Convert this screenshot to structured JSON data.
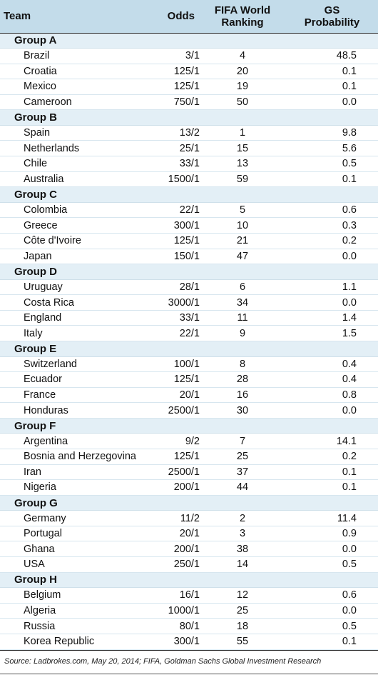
{
  "headers": {
    "team": "Team",
    "odds": "Odds",
    "ranking_line1": "FIFA World",
    "ranking_line2": "Ranking",
    "prob_line1": "GS",
    "prob_line2": "Probability"
  },
  "groups": [
    {
      "name": "Group A",
      "teams": [
        {
          "team": "Brazil",
          "odds": "3/1",
          "rank": "4",
          "prob": "48.5"
        },
        {
          "team": "Croatia",
          "odds": "125/1",
          "rank": "20",
          "prob": "0.1"
        },
        {
          "team": "Mexico",
          "odds": "125/1",
          "rank": "19",
          "prob": "0.1"
        },
        {
          "team": "Cameroon",
          "odds": "750/1",
          "rank": "50",
          "prob": "0.0"
        }
      ]
    },
    {
      "name": "Group B",
      "teams": [
        {
          "team": "Spain",
          "odds": "13/2",
          "rank": "1",
          "prob": "9.8"
        },
        {
          "team": "Netherlands",
          "odds": "25/1",
          "rank": "15",
          "prob": "5.6"
        },
        {
          "team": "Chile",
          "odds": "33/1",
          "rank": "13",
          "prob": "0.5"
        },
        {
          "team": "Australia",
          "odds": "1500/1",
          "rank": "59",
          "prob": "0.1"
        }
      ]
    },
    {
      "name": "Group C",
      "teams": [
        {
          "team": "Colombia",
          "odds": "22/1",
          "rank": "5",
          "prob": "0.6"
        },
        {
          "team": "Greece",
          "odds": "300/1",
          "rank": "10",
          "prob": "0.3"
        },
        {
          "team": "Côte d'Ivoire",
          "odds": "125/1",
          "rank": "21",
          "prob": "0.2"
        },
        {
          "team": "Japan",
          "odds": "150/1",
          "rank": "47",
          "prob": "0.0"
        }
      ]
    },
    {
      "name": "Group D",
      "teams": [
        {
          "team": "Uruguay",
          "odds": "28/1",
          "rank": "6",
          "prob": "1.1"
        },
        {
          "team": "Costa Rica",
          "odds": "3000/1",
          "rank": "34",
          "prob": "0.0"
        },
        {
          "team": "England",
          "odds": "33/1",
          "rank": "11",
          "prob": "1.4"
        },
        {
          "team": "Italy",
          "odds": "22/1",
          "rank": "9",
          "prob": "1.5"
        }
      ]
    },
    {
      "name": "Group E",
      "teams": [
        {
          "team": "Switzerland",
          "odds": "100/1",
          "rank": "8",
          "prob": "0.4"
        },
        {
          "team": "Ecuador",
          "odds": "125/1",
          "rank": "28",
          "prob": "0.4"
        },
        {
          "team": "France",
          "odds": "20/1",
          "rank": "16",
          "prob": "0.8"
        },
        {
          "team": "Honduras",
          "odds": "2500/1",
          "rank": "30",
          "prob": "0.0"
        }
      ]
    },
    {
      "name": "Group F",
      "teams": [
        {
          "team": "Argentina",
          "odds": "9/2",
          "rank": "7",
          "prob": "14.1"
        },
        {
          "team": "Bosnia and Herzegovina",
          "odds": "125/1",
          "rank": "25",
          "prob": "0.2"
        },
        {
          "team": "Iran",
          "odds": "2500/1",
          "rank": "37",
          "prob": "0.1"
        },
        {
          "team": "Nigeria",
          "odds": "200/1",
          "rank": "44",
          "prob": "0.1"
        }
      ]
    },
    {
      "name": "Group G",
      "teams": [
        {
          "team": "Germany",
          "odds": "11/2",
          "rank": "2",
          "prob": "11.4"
        },
        {
          "team": "Portugal",
          "odds": "20/1",
          "rank": "3",
          "prob": "0.9"
        },
        {
          "team": "Ghana",
          "odds": "200/1",
          "rank": "38",
          "prob": "0.0"
        },
        {
          "team": "USA",
          "odds": "250/1",
          "rank": "14",
          "prob": "0.5"
        }
      ]
    },
    {
      "name": "Group H",
      "teams": [
        {
          "team": "Belgium",
          "odds": "16/1",
          "rank": "12",
          "prob": "0.6"
        },
        {
          "team": "Algeria",
          "odds": "1000/1",
          "rank": "25",
          "prob": "0.0"
        },
        {
          "team": "Russia",
          "odds": "80/1",
          "rank": "18",
          "prob": "0.5"
        },
        {
          "team": "Korea Republic",
          "odds": "300/1",
          "rank": "55",
          "prob": "0.1"
        }
      ]
    }
  ],
  "source": "Source: Ladbrokes.com, May 20, 2014; FIFA, Goldman Sachs Global Investment Research",
  "colors": {
    "header_bg": "#c3dcea",
    "group_row_bg": "#e3eff6",
    "row_border": "#d7e6ef"
  }
}
